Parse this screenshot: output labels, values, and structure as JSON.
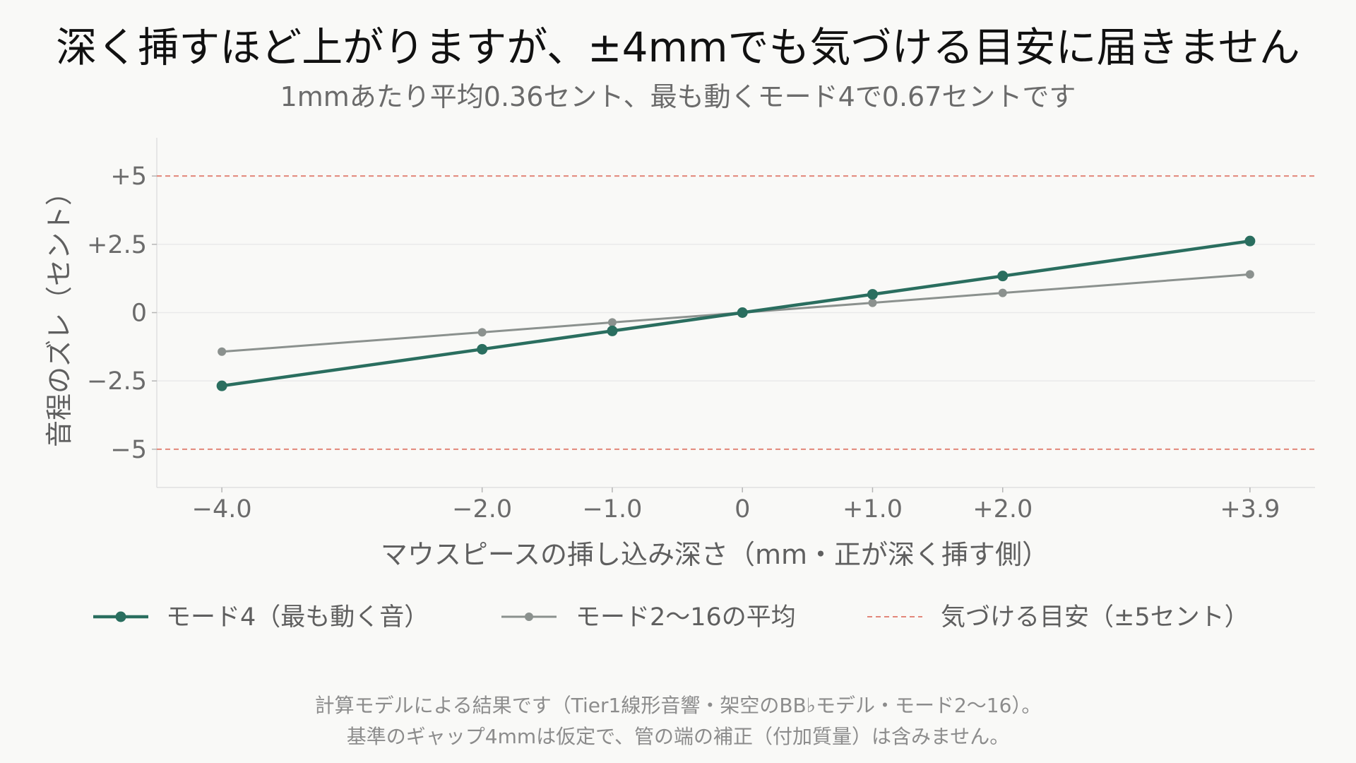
{
  "header": {
    "title": "深く挿すほど上がりますが、±4mmでも気づける目安に届きません",
    "subtitle": "1mmあたり平均0.36セント、最も動くモード4で0.67セントです"
  },
  "chart_data": {
    "type": "line",
    "xlabel": "マウスピースの挿し込み深さ（mm・正が深く挿す側）",
    "ylabel": "音程のズレ（セント）",
    "x": [
      -4.0,
      -2.0,
      -1.0,
      0,
      1.0,
      2.0,
      3.9
    ],
    "x_tick_labels": [
      "−4.0",
      "−2.0",
      "−1.0",
      "0",
      "+1.0",
      "+2.0",
      "+3.9"
    ],
    "y_ticks": [
      5,
      2.5,
      0,
      -2.5,
      -5
    ],
    "y_tick_labels": [
      "+5",
      "+2.5",
      "0",
      "−2.5",
      "−5"
    ],
    "xlim": [
      -4.5,
      4.4
    ],
    "ylim": [
      -6.4,
      6.4
    ],
    "grid": true,
    "legend_position": "bottom",
    "series": [
      {
        "name": "モード4（最も動く音）",
        "color": "#2a6e5f",
        "values": [
          -2.68,
          -1.34,
          -0.67,
          0,
          0.67,
          1.34,
          2.62
        ]
      },
      {
        "name": "モード2〜16の平均",
        "color": "#8b918e",
        "values": [
          -1.43,
          -0.72,
          -0.36,
          0,
          0.36,
          0.72,
          1.4
        ]
      }
    ],
    "reference_lines": {
      "name": "気づける目安（±5セント）",
      "color": "#e2877a",
      "values": [
        5,
        -5
      ]
    }
  },
  "footnote": {
    "line1": "計算モデルによる結果です（Tier1線形音響・架空のBB♭モデル・モード2〜16）。",
    "line2": "基準のギャップ4mmは仮定で、管の端の補正（付加質量）は含みません。"
  }
}
